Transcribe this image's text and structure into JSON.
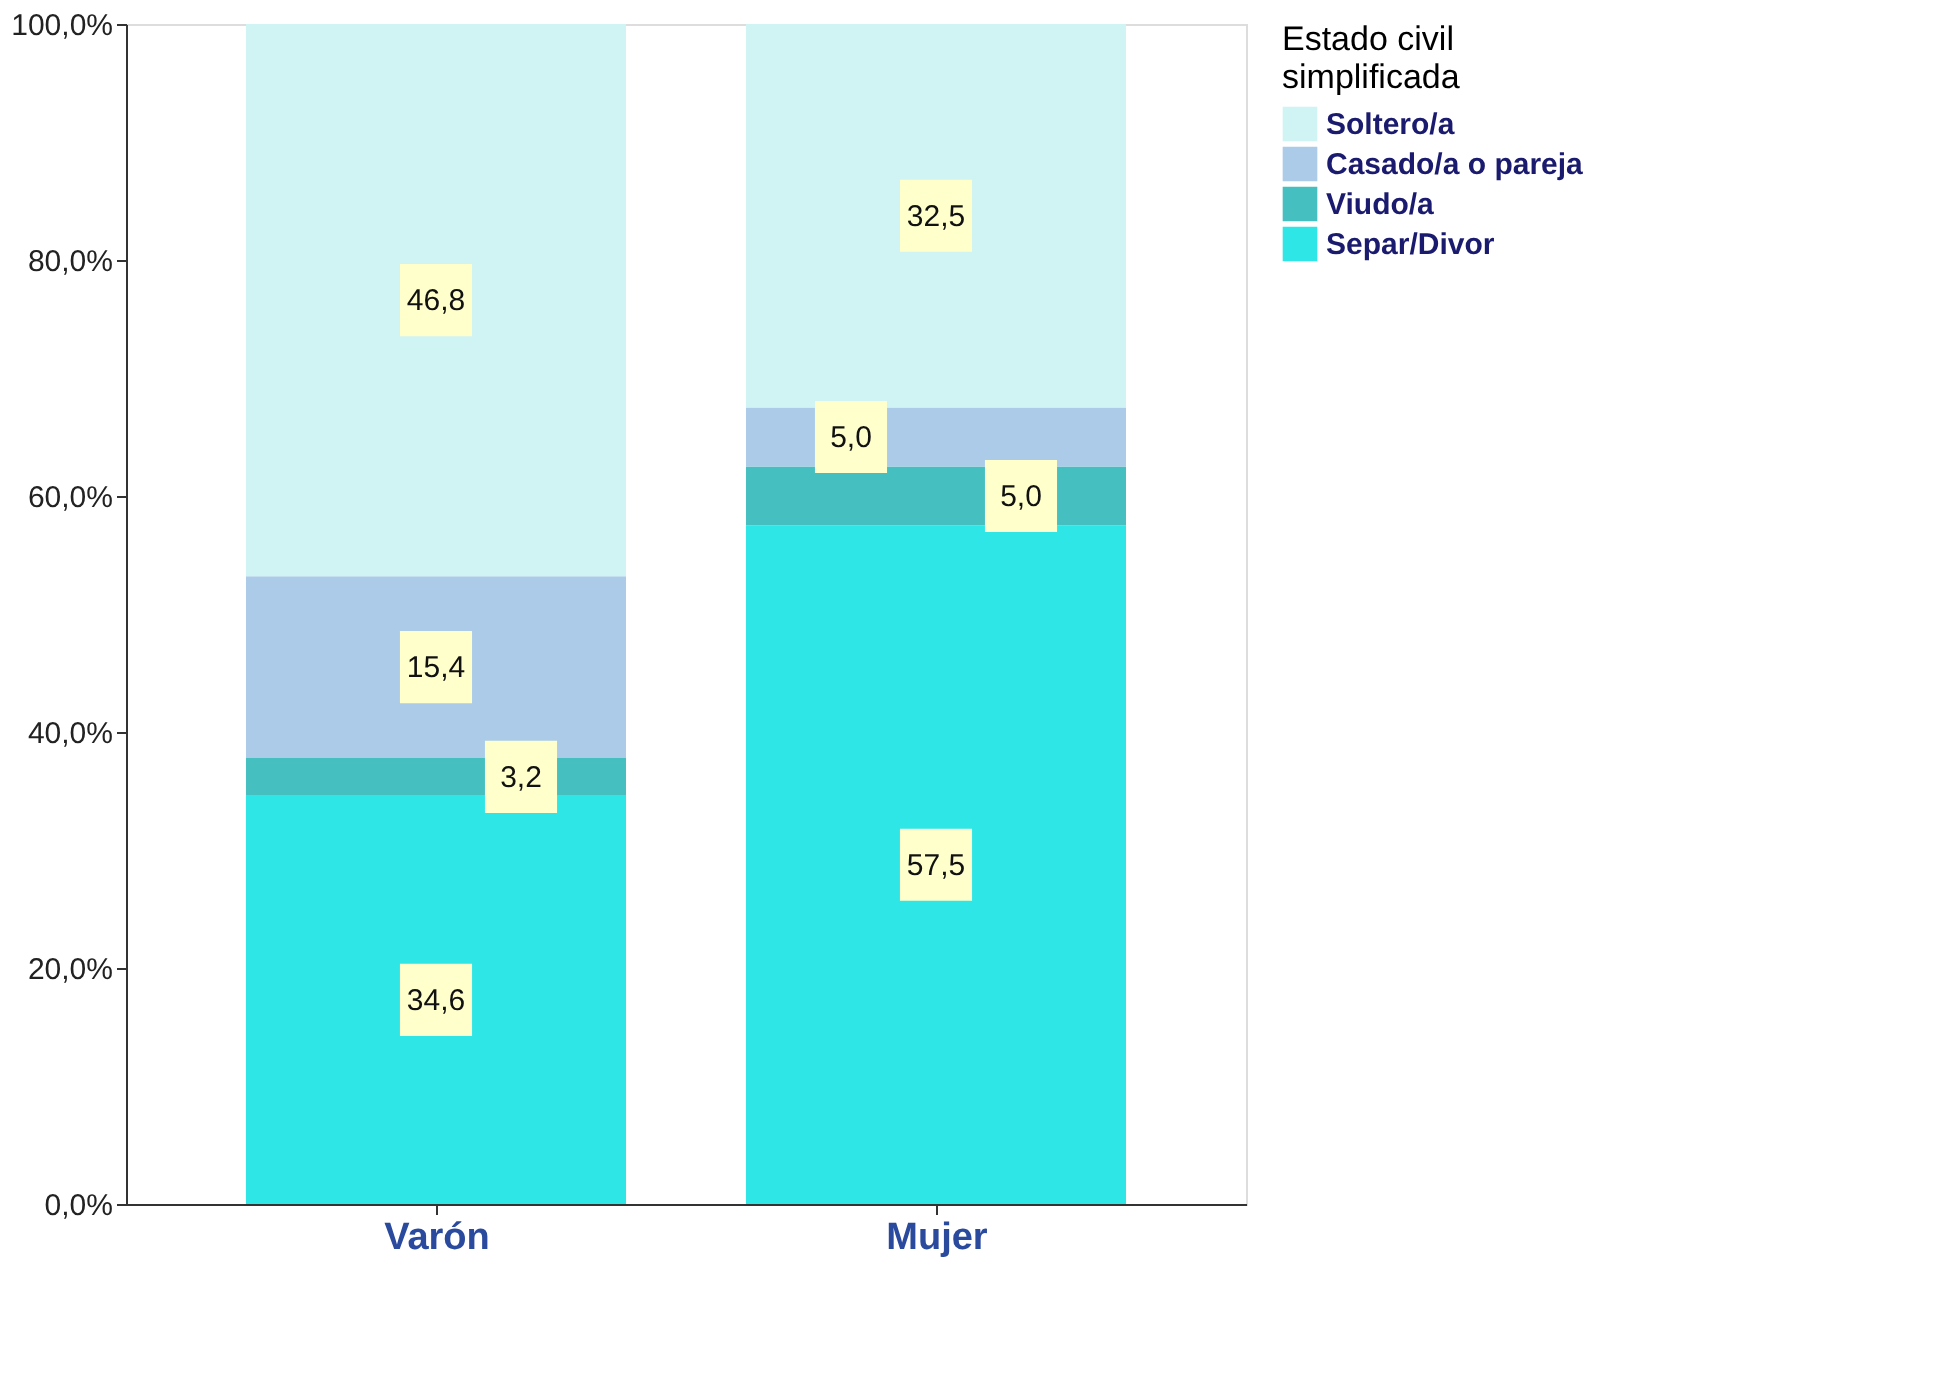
{
  "chart_data": {
    "type": "bar",
    "stacked": true,
    "legend_title": "Estado civil simplificada",
    "legend": "top right",
    "grid": false,
    "categories": [
      "Varón",
      "Mujer"
    ],
    "ylim": [
      0,
      100
    ],
    "yticks": [
      {
        "value": 0,
        "label": "0,0%"
      },
      {
        "value": 20,
        "label": "20,0%"
      },
      {
        "value": 40,
        "label": "40,0%"
      },
      {
        "value": 60,
        "label": "60,0%"
      },
      {
        "value": 80,
        "label": "80,0%"
      },
      {
        "value": 100,
        "label": "100,0%"
      }
    ],
    "series": [
      {
        "name": "Separ/Divor",
        "color": "#2ee6e6",
        "values": [
          34.6,
          57.5
        ],
        "value_labels": [
          "34,6",
          "57,5"
        ]
      },
      {
        "name": "Viudo/a",
        "color": "#45bfbf",
        "values": [
          3.2,
          5.0
        ],
        "value_labels": [
          "3,2",
          "5,0"
        ]
      },
      {
        "name": "Casado/a o pareja",
        "color": "#abcbe9",
        "values": [
          15.4,
          5.0
        ],
        "value_labels": [
          "15,4",
          "5,0"
        ]
      },
      {
        "name": "Soltero/a",
        "color": "#d0f4f4",
        "values": [
          46.8,
          32.5
        ],
        "value_labels": [
          "46,8",
          "32,5"
        ]
      }
    ]
  }
}
